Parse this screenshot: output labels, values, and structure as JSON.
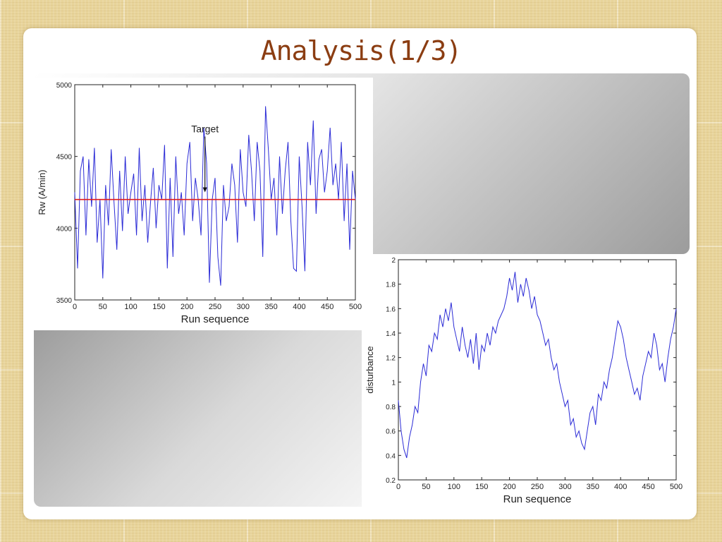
{
  "slide": {
    "title": "Analysis(1/3)"
  },
  "chart_data": [
    {
      "type": "line",
      "xlabel": "Run sequence",
      "ylabel": "Rw (A/min)",
      "xlim": [
        0,
        500
      ],
      "ylim": [
        3500,
        5000
      ],
      "xticks": [
        0,
        50,
        100,
        150,
        200,
        250,
        300,
        350,
        400,
        450,
        500
      ],
      "yticks": [
        3500,
        4000,
        4500,
        5000
      ],
      "grid": false,
      "annotation": {
        "text": "Target",
        "x": 232,
        "y": 4245
      },
      "series": [
        {
          "color": "#2b2bd6",
          "x": [
            0,
            5,
            10,
            15,
            20,
            25,
            30,
            35,
            40,
            45,
            50,
            55,
            60,
            65,
            70,
            75,
            80,
            85,
            90,
            95,
            100,
            105,
            110,
            115,
            120,
            125,
            130,
            135,
            140,
            145,
            150,
            155,
            160,
            165,
            170,
            175,
            180,
            185,
            190,
            195,
            200,
            205,
            210,
            215,
            220,
            225,
            230,
            235,
            240,
            245,
            250,
            255,
            260,
            265,
            270,
            275,
            280,
            285,
            290,
            295,
            300,
            305,
            310,
            315,
            320,
            325,
            330,
            335,
            340,
            345,
            350,
            355,
            360,
            365,
            370,
            375,
            380,
            385,
            390,
            395,
            400,
            405,
            410,
            415,
            420,
            425,
            430,
            435,
            440,
            445,
            450,
            455,
            460,
            465,
            470,
            475,
            480,
            485,
            490,
            495,
            500
          ],
          "values": [
            4250,
            3720,
            4400,
            4500,
            3950,
            4480,
            4150,
            4560,
            3900,
            4200,
            3650,
            4300,
            4020,
            4550,
            4180,
            3850,
            4400,
            3980,
            4500,
            4100,
            4250,
            4380,
            3950,
            4560,
            4050,
            4300,
            3900,
            4180,
            4420,
            4000,
            4300,
            4200,
            4580,
            3720,
            4350,
            3800,
            4500,
            4100,
            4250,
            3950,
            4450,
            4600,
            4050,
            4350,
            4200,
            3950,
            4700,
            4450,
            3620,
            4200,
            4350,
            3800,
            3600,
            4300,
            4050,
            4150,
            4450,
            4300,
            3900,
            4550,
            4250,
            4150,
            4650,
            4400,
            4050,
            4600,
            4400,
            3800,
            4850,
            4550,
            4200,
            4350,
            3950,
            4500,
            4100,
            4400,
            4600,
            4050,
            3720,
            3700,
            4500,
            4150,
            3700,
            4600,
            4300,
            4750,
            4100,
            4480,
            4550,
            4250,
            4400,
            4700,
            4300,
            4450,
            4200,
            4600,
            4050,
            4450,
            3850,
            4400,
            4200
          ]
        },
        {
          "color": "#e01a1a",
          "x": [
            0,
            500
          ],
          "values": [
            4200,
            4200
          ]
        }
      ]
    },
    {
      "type": "line",
      "xlabel": "Run sequence",
      "ylabel": "disturbance",
      "xlim": [
        0,
        500
      ],
      "ylim": [
        0.2,
        2
      ],
      "xticks": [
        0,
        50,
        100,
        150,
        200,
        250,
        300,
        350,
        400,
        450,
        500
      ],
      "yticks": [
        0.2,
        0.4,
        0.6,
        0.8,
        1,
        1.2,
        1.4,
        1.6,
        1.8,
        2
      ],
      "grid": false,
      "series": [
        {
          "color": "#2b2bd6",
          "x": [
            0,
            5,
            10,
            15,
            20,
            25,
            30,
            35,
            40,
            45,
            50,
            55,
            60,
            65,
            70,
            75,
            80,
            85,
            90,
            95,
            100,
            105,
            110,
            115,
            120,
            125,
            130,
            135,
            140,
            145,
            150,
            155,
            160,
            165,
            170,
            175,
            180,
            185,
            190,
            195,
            200,
            205,
            210,
            215,
            220,
            225,
            230,
            235,
            240,
            245,
            250,
            255,
            260,
            265,
            270,
            275,
            280,
            285,
            290,
            295,
            300,
            305,
            310,
            315,
            320,
            325,
            330,
            335,
            340,
            345,
            350,
            355,
            360,
            365,
            370,
            375,
            380,
            385,
            390,
            395,
            400,
            405,
            410,
            415,
            420,
            425,
            430,
            435,
            440,
            445,
            450,
            455,
            460,
            465,
            470,
            475,
            480,
            485,
            490,
            495,
            500
          ],
          "values": [
            0.85,
            0.6,
            0.45,
            0.38,
            0.55,
            0.65,
            0.8,
            0.75,
            1.0,
            1.15,
            1.05,
            1.3,
            1.25,
            1.4,
            1.35,
            1.55,
            1.45,
            1.6,
            1.5,
            1.65,
            1.45,
            1.35,
            1.25,
            1.45,
            1.3,
            1.2,
            1.35,
            1.15,
            1.4,
            1.1,
            1.3,
            1.25,
            1.4,
            1.3,
            1.45,
            1.4,
            1.5,
            1.55,
            1.6,
            1.7,
            1.85,
            1.75,
            1.9,
            1.65,
            1.8,
            1.7,
            1.85,
            1.75,
            1.6,
            1.7,
            1.55,
            1.5,
            1.4,
            1.3,
            1.35,
            1.2,
            1.1,
            1.15,
            1.0,
            0.9,
            0.8,
            0.85,
            0.65,
            0.7,
            0.55,
            0.6,
            0.5,
            0.45,
            0.6,
            0.75,
            0.8,
            0.65,
            0.9,
            0.85,
            1.0,
            0.95,
            1.1,
            1.2,
            1.35,
            1.5,
            1.45,
            1.35,
            1.2,
            1.1,
            1.0,
            0.9,
            0.95,
            0.85,
            1.05,
            1.15,
            1.25,
            1.2,
            1.4,
            1.3,
            1.1,
            1.15,
            1.0,
            1.2,
            1.35,
            1.45,
            1.6
          ]
        }
      ]
    }
  ]
}
